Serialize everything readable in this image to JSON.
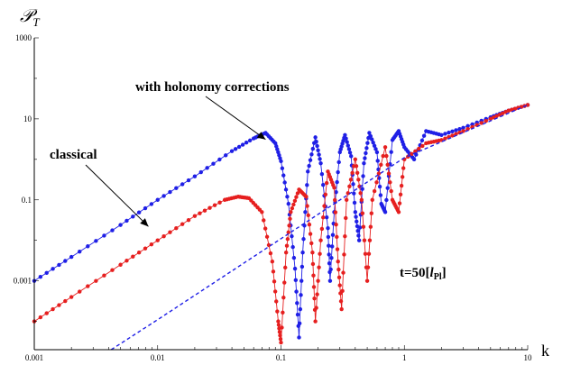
{
  "chart_data": {
    "type": "scatter",
    "title": "",
    "xlabel": "k",
    "ylabel": "𝒫",
    "ylabel_sub": "T",
    "x_scale": "log",
    "y_scale": "log",
    "xlim": [
      0.001,
      10
    ],
    "ylim": [
      2e-05,
      1000
    ],
    "x_ticks": [
      "0.001",
      "0.01",
      "0.1",
      "1",
      "10"
    ],
    "y_ticks": [
      "0.001",
      "0.1",
      "10",
      "1000"
    ],
    "grid": false,
    "series": [
      {
        "name": "with holonomy corrections",
        "color": "#1f1fe6",
        "points": [
          [
            0.001,
            0.001
          ],
          [
            0.002,
            0.0039
          ],
          [
            0.005,
            0.024
          ],
          [
            0.01,
            0.1
          ],
          [
            0.02,
            0.38
          ],
          [
            0.04,
            1.6
          ],
          [
            0.06,
            3.3
          ],
          [
            0.075,
            4.5
          ],
          [
            0.09,
            2.5
          ],
          [
            0.1,
            0.9
          ],
          [
            0.115,
            0.08
          ],
          [
            0.13,
            0.002
          ],
          [
            0.14,
            4e-05
          ],
          [
            0.15,
            0.005
          ],
          [
            0.165,
            0.5
          ],
          [
            0.19,
            3.5
          ],
          [
            0.21,
            0.8
          ],
          [
            0.24,
            0.02
          ],
          [
            0.25,
            0.001
          ],
          [
            0.27,
            0.05
          ],
          [
            0.3,
            1.5
          ],
          [
            0.33,
            4.0
          ],
          [
            0.37,
            1.2
          ],
          [
            0.4,
            0.05
          ],
          [
            0.43,
            0.01
          ],
          [
            0.47,
            0.8
          ],
          [
            0.52,
            4.5
          ],
          [
            0.6,
            1.5
          ],
          [
            0.65,
            0.08
          ],
          [
            0.7,
            0.05
          ],
          [
            0.8,
            3.0
          ],
          [
            0.9,
            5.0
          ],
          [
            1.0,
            2.0
          ],
          [
            1.2,
            1.0
          ],
          [
            1.5,
            5.0
          ],
          [
            2.0,
            4.0
          ],
          [
            3.0,
            6.0
          ],
          [
            5.0,
            11.0
          ],
          [
            7.0,
            16.0
          ],
          [
            10.0,
            22.0
          ]
        ]
      },
      {
        "name": "classical",
        "color": "#e61f1f",
        "points": [
          [
            0.001,
            0.0001
          ],
          [
            0.002,
            0.0004
          ],
          [
            0.005,
            0.0025
          ],
          [
            0.01,
            0.01
          ],
          [
            0.02,
            0.04
          ],
          [
            0.035,
            0.1
          ],
          [
            0.045,
            0.12
          ],
          [
            0.055,
            0.11
          ],
          [
            0.07,
            0.05
          ],
          [
            0.085,
            0.003
          ],
          [
            0.095,
            0.0001
          ],
          [
            0.1,
            3e-05
          ],
          [
            0.11,
            0.005
          ],
          [
            0.12,
            0.05
          ],
          [
            0.14,
            0.18
          ],
          [
            0.16,
            0.12
          ],
          [
            0.18,
            0.005
          ],
          [
            0.19,
            0.0001
          ],
          [
            0.21,
            0.01
          ],
          [
            0.24,
            0.5
          ],
          [
            0.27,
            0.2
          ],
          [
            0.29,
            0.003
          ],
          [
            0.31,
            0.0002
          ],
          [
            0.34,
            0.1
          ],
          [
            0.4,
            1.0
          ],
          [
            0.45,
            0.1
          ],
          [
            0.5,
            0.001
          ],
          [
            0.55,
            0.1
          ],
          [
            0.7,
            2.0
          ],
          [
            0.8,
            0.1
          ],
          [
            0.9,
            0.05
          ],
          [
            1.0,
            1.0
          ],
          [
            1.5,
            2.5
          ],
          [
            2.0,
            3.0
          ],
          [
            3.0,
            5.0
          ],
          [
            5.0,
            10.0
          ],
          [
            7.0,
            16.0
          ],
          [
            10.0,
            22.0
          ]
        ]
      },
      {
        "name": "",
        "style": "dashed",
        "color": "#1f1fe6",
        "points": [
          [
            0.0042,
            2e-05
          ],
          [
            0.01,
            0.00011
          ],
          [
            0.1,
            0.011
          ],
          [
            1,
            1.1
          ],
          [
            10,
            22
          ]
        ]
      }
    ],
    "annotations": [
      {
        "text": "with holonomy corrections",
        "arrow_to": [
          0.075,
          3.8
        ]
      },
      {
        "text": "classical",
        "arrow_to": [
          0.008,
          0.022
        ]
      },
      {
        "text_prefix": "t=50[",
        "text_var": "l",
        "text_sub": "Pl",
        "text_suffix": "]"
      }
    ]
  }
}
